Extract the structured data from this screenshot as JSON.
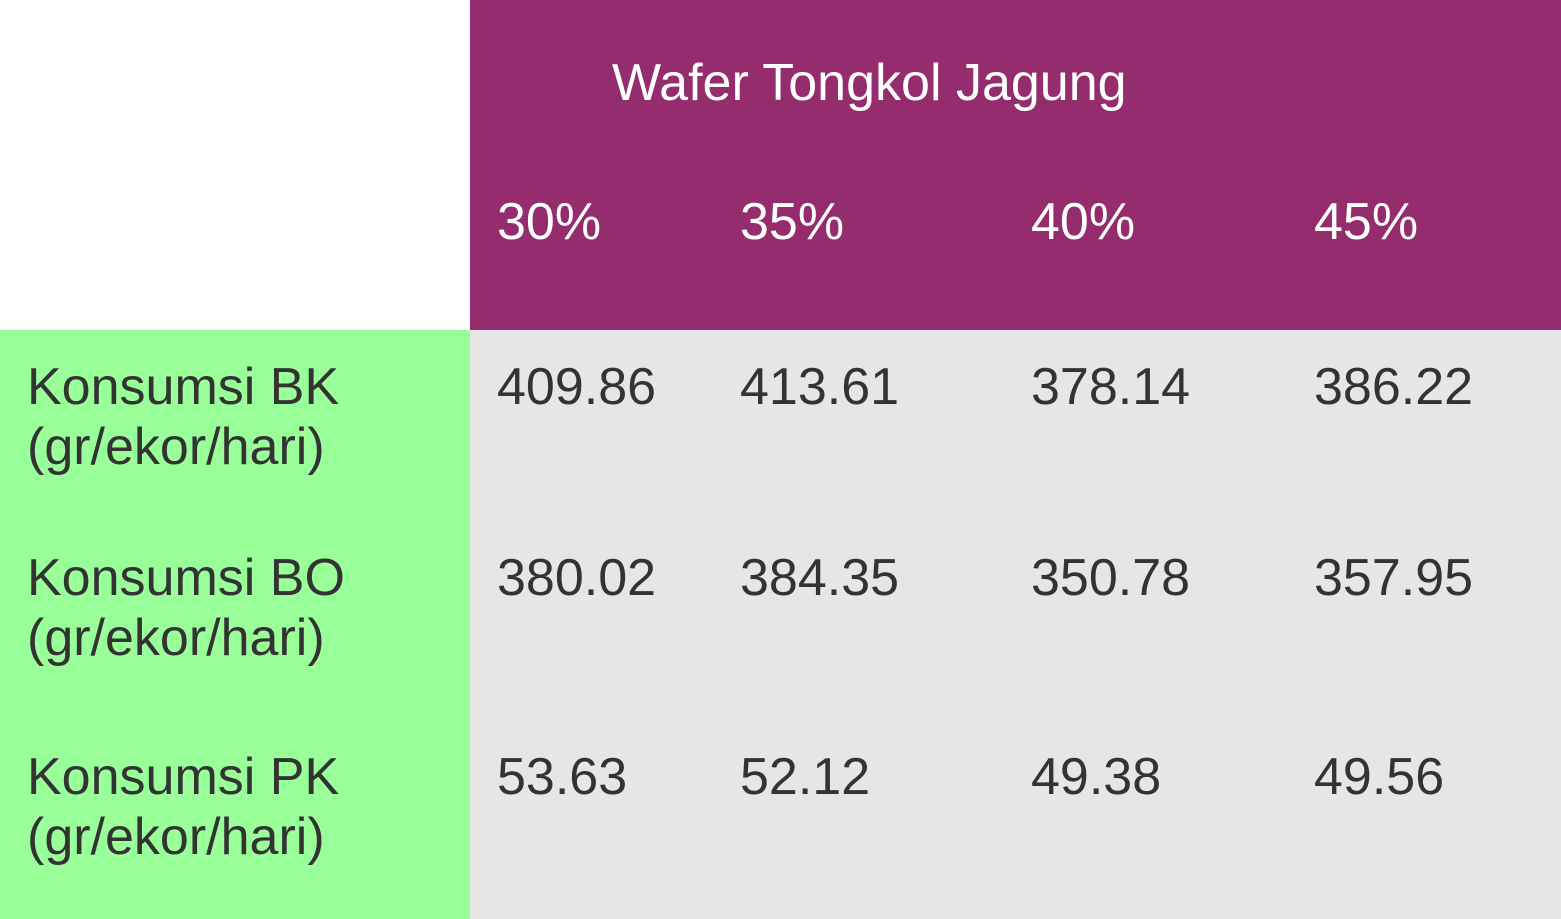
{
  "table": {
    "title": "Wafer Tongkol Jagung",
    "columns": [
      "30%",
      "35%",
      "40%",
      "45%"
    ],
    "rows": [
      {
        "label": [
          "Konsumsi BK",
          "(gr/ekor/hari)"
        ],
        "values": [
          409.86,
          413.61,
          378.14,
          386.22
        ]
      },
      {
        "label": [
          "Konsumsi BO",
          "(gr/ekor/hari)"
        ],
        "values": [
          380.02,
          384.35,
          350.78,
          357.95
        ]
      },
      {
        "label": [
          "Konsumsi PK",
          "(gr/ekor/hari)"
        ],
        "values": [
          53.63,
          52.12,
          49.38,
          49.56
        ]
      }
    ]
  }
}
